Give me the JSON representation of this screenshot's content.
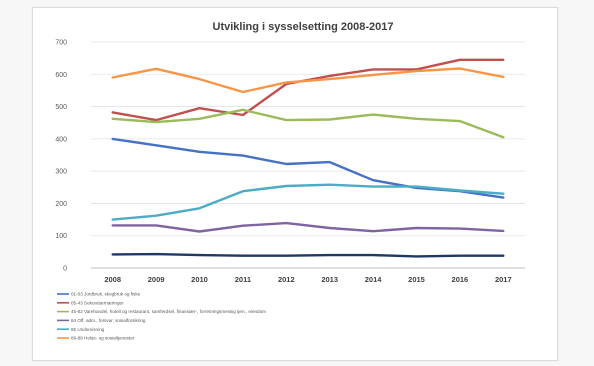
{
  "chart_data": {
    "type": "line",
    "title": "Utvikling i sysselsetting 2008-2017",
    "x": [
      "2008",
      "2009",
      "2010",
      "2011",
      "2012",
      "2013",
      "2014",
      "2015",
      "2016",
      "2017"
    ],
    "ylim": [
      0,
      700
    ],
    "yticks": [
      "0",
      "100",
      "200",
      "300",
      "400",
      "500",
      "600",
      "700"
    ],
    "grid": true,
    "legend_position": "bottom",
    "series": [
      {
        "name": "01-03 Jordbruk, skogbruk og fiske",
        "color": "#4472c4",
        "values": [
          400,
          380,
          360,
          348,
          322,
          328,
          272,
          248,
          238,
          218
        ]
      },
      {
        "name": "05-43 Sekundærnæringer",
        "color": "#c0504d",
        "values": [
          482,
          458,
          495,
          474,
          570,
          595,
          615,
          615,
          645,
          645
        ]
      },
      {
        "name": "45-82 Varehandel, hotell og restaurant, samferdsel, finansiær-, forretningsmessig tjen., eiendom",
        "color": "#9bbb59",
        "values": [
          462,
          452,
          462,
          490,
          458,
          460,
          475,
          462,
          455,
          405
        ]
      },
      {
        "name": "84 Off. adm., forsvar, sosialforsikring",
        "color": "#8064a2",
        "values": [
          132,
          132,
          113,
          131,
          139,
          124,
          114,
          124,
          122,
          115
        ]
      },
      {
        "name": "85 Undervisning",
        "color": "#4bacc6",
        "values": [
          150,
          162,
          185,
          238,
          254,
          258,
          252,
          252,
          240,
          230
        ]
      },
      {
        "name": "86-88 Helse- og sosialtjenester",
        "color": "#f79646",
        "values": [
          590,
          617,
          585,
          545,
          575,
          585,
          598,
          610,
          618,
          592
        ]
      },
      {
        "name": "",
        "color": "#1f3864",
        "values": [
          42,
          43,
          40,
          38,
          38,
          40,
          40,
          36,
          38,
          38
        ]
      }
    ]
  }
}
